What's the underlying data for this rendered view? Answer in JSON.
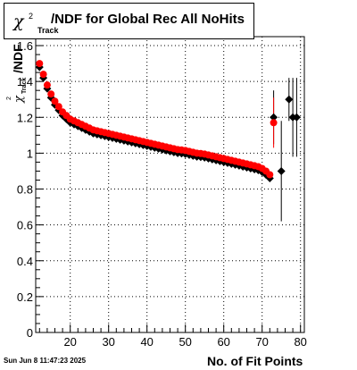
{
  "title": {
    "chi_symbol": "χ",
    "superscript": "2",
    "subscript": "Track",
    "text": "/NDF for Global Rec All NoHits"
  },
  "footer_text": "Sun Jun  8 11:47:23 2025",
  "chart_data": {
    "type": "scatter",
    "title": "χ²Track/NDF for Global Rec All NoHits",
    "xlabel": "No. of Fit Points",
    "ylabel": "χ²Track/NDF",
    "ylabel_parts": {
      "chi": "χ",
      "sup": "2",
      "sub": "Track",
      "rest": "/NDF"
    },
    "xlim": [
      11,
      81
    ],
    "ylim": [
      0,
      1.65
    ],
    "x_ticks": [
      20,
      30,
      40,
      50,
      60,
      70,
      80
    ],
    "y_ticks": [
      0,
      0.2,
      0.4,
      0.6,
      0.8,
      1,
      1.2,
      1.4,
      1.6
    ],
    "y_tick_labels": [
      "0",
      "0.2",
      "0.4",
      "0.6",
      "0.8",
      "1",
      "1.2",
      "1.4",
      "1.6"
    ],
    "grid": true,
    "series": [
      {
        "color": "#000000",
        "marker": "diamond",
        "points": [
          {
            "x": 12,
            "y": 1.48
          },
          {
            "x": 13,
            "y": 1.42
          },
          {
            "x": 14,
            "y": 1.36
          },
          {
            "x": 15,
            "y": 1.31
          },
          {
            "x": 16,
            "y": 1.27
          },
          {
            "x": 17,
            "y": 1.24
          },
          {
            "x": 18,
            "y": 1.21
          },
          {
            "x": 19,
            "y": 1.19
          },
          {
            "x": 20,
            "y": 1.17
          },
          {
            "x": 21,
            "y": 1.16
          },
          {
            "x": 22,
            "y": 1.15
          },
          {
            "x": 23,
            "y": 1.14
          },
          {
            "x": 24,
            "y": 1.13
          },
          {
            "x": 25,
            "y": 1.12
          },
          {
            "x": 26,
            "y": 1.11
          },
          {
            "x": 27,
            "y": 1.105
          },
          {
            "x": 28,
            "y": 1.1
          },
          {
            "x": 29,
            "y": 1.095
          },
          {
            "x": 30,
            "y": 1.09
          },
          {
            "x": 31,
            "y": 1.085
          },
          {
            "x": 32,
            "y": 1.08
          },
          {
            "x": 33,
            "y": 1.075
          },
          {
            "x": 34,
            "y": 1.07
          },
          {
            "x": 35,
            "y": 1.065
          },
          {
            "x": 36,
            "y": 1.06
          },
          {
            "x": 37,
            "y": 1.055
          },
          {
            "x": 38,
            "y": 1.05
          },
          {
            "x": 39,
            "y": 1.045
          },
          {
            "x": 40,
            "y": 1.04
          },
          {
            "x": 41,
            "y": 1.035
          },
          {
            "x": 42,
            "y": 1.03
          },
          {
            "x": 43,
            "y": 1.025
          },
          {
            "x": 44,
            "y": 1.02
          },
          {
            "x": 45,
            "y": 1.015
          },
          {
            "x": 46,
            "y": 1.01
          },
          {
            "x": 47,
            "y": 1.005
          },
          {
            "x": 48,
            "y": 1.0
          },
          {
            "x": 49,
            "y": 0.998
          },
          {
            "x": 50,
            "y": 0.995
          },
          {
            "x": 51,
            "y": 0.99
          },
          {
            "x": 52,
            "y": 0.985
          },
          {
            "x": 53,
            "y": 0.98
          },
          {
            "x": 54,
            "y": 0.978
          },
          {
            "x": 55,
            "y": 0.975
          },
          {
            "x": 56,
            "y": 0.97
          },
          {
            "x": 57,
            "y": 0.965
          },
          {
            "x": 58,
            "y": 0.96
          },
          {
            "x": 59,
            "y": 0.955
          },
          {
            "x": 60,
            "y": 0.95
          },
          {
            "x": 61,
            "y": 0.945
          },
          {
            "x": 62,
            "y": 0.94
          },
          {
            "x": 63,
            "y": 0.935
          },
          {
            "x": 64,
            "y": 0.93
          },
          {
            "x": 65,
            "y": 0.925
          },
          {
            "x": 66,
            "y": 0.92
          },
          {
            "x": 67,
            "y": 0.915
          },
          {
            "x": 68,
            "y": 0.91
          },
          {
            "x": 69,
            "y": 0.905
          },
          {
            "x": 70,
            "y": 0.895
          },
          {
            "x": 71,
            "y": 0.88
          },
          {
            "x": 72,
            "y": 0.86
          },
          {
            "x": 73,
            "y": 1.2,
            "err": 0.15
          },
          {
            "x": 75,
            "y": 0.9,
            "err": 0.28
          },
          {
            "x": 77,
            "y": 1.3,
            "err": 0.12
          },
          {
            "x": 78,
            "y": 1.2,
            "err": 0.22
          },
          {
            "x": 79,
            "y": 1.2,
            "err": 0.22
          }
        ]
      },
      {
        "color": "#ff0000",
        "marker": "circle",
        "points": [
          {
            "x": 12,
            "y": 1.5
          },
          {
            "x": 13,
            "y": 1.44
          },
          {
            "x": 14,
            "y": 1.38
          },
          {
            "x": 15,
            "y": 1.33
          },
          {
            "x": 16,
            "y": 1.29
          },
          {
            "x": 17,
            "y": 1.26
          },
          {
            "x": 18,
            "y": 1.23
          },
          {
            "x": 19,
            "y": 1.21
          },
          {
            "x": 20,
            "y": 1.19
          },
          {
            "x": 21,
            "y": 1.18
          },
          {
            "x": 22,
            "y": 1.17
          },
          {
            "x": 23,
            "y": 1.16
          },
          {
            "x": 24,
            "y": 1.15
          },
          {
            "x": 25,
            "y": 1.14
          },
          {
            "x": 26,
            "y": 1.13
          },
          {
            "x": 27,
            "y": 1.125
          },
          {
            "x": 28,
            "y": 1.12
          },
          {
            "x": 29,
            "y": 1.115
          },
          {
            "x": 30,
            "y": 1.11
          },
          {
            "x": 31,
            "y": 1.105
          },
          {
            "x": 32,
            "y": 1.1
          },
          {
            "x": 33,
            "y": 1.095
          },
          {
            "x": 34,
            "y": 1.09
          },
          {
            "x": 35,
            "y": 1.085
          },
          {
            "x": 36,
            "y": 1.08
          },
          {
            "x": 37,
            "y": 1.075
          },
          {
            "x": 38,
            "y": 1.07
          },
          {
            "x": 39,
            "y": 1.065
          },
          {
            "x": 40,
            "y": 1.06
          },
          {
            "x": 41,
            "y": 1.055
          },
          {
            "x": 42,
            "y": 1.05
          },
          {
            "x": 43,
            "y": 1.045
          },
          {
            "x": 44,
            "y": 1.04
          },
          {
            "x": 45,
            "y": 1.035
          },
          {
            "x": 46,
            "y": 1.03
          },
          {
            "x": 47,
            "y": 1.025
          },
          {
            "x": 48,
            "y": 1.02
          },
          {
            "x": 49,
            "y": 1.018
          },
          {
            "x": 50,
            "y": 1.015
          },
          {
            "x": 51,
            "y": 1.01
          },
          {
            "x": 52,
            "y": 1.005
          },
          {
            "x": 53,
            "y": 1.0
          },
          {
            "x": 54,
            "y": 0.998
          },
          {
            "x": 55,
            "y": 0.995
          },
          {
            "x": 56,
            "y": 0.99
          },
          {
            "x": 57,
            "y": 0.985
          },
          {
            "x": 58,
            "y": 0.98
          },
          {
            "x": 59,
            "y": 0.975
          },
          {
            "x": 60,
            "y": 0.97
          },
          {
            "x": 61,
            "y": 0.965
          },
          {
            "x": 62,
            "y": 0.96
          },
          {
            "x": 63,
            "y": 0.955
          },
          {
            "x": 64,
            "y": 0.95
          },
          {
            "x": 65,
            "y": 0.945
          },
          {
            "x": 66,
            "y": 0.94
          },
          {
            "x": 67,
            "y": 0.935
          },
          {
            "x": 68,
            "y": 0.93
          },
          {
            "x": 69,
            "y": 0.925
          },
          {
            "x": 70,
            "y": 0.915
          },
          {
            "x": 71,
            "y": 0.9
          },
          {
            "x": 72,
            "y": 0.88
          },
          {
            "x": 73,
            "y": 1.17,
            "err": 0.14
          }
        ]
      }
    ]
  }
}
